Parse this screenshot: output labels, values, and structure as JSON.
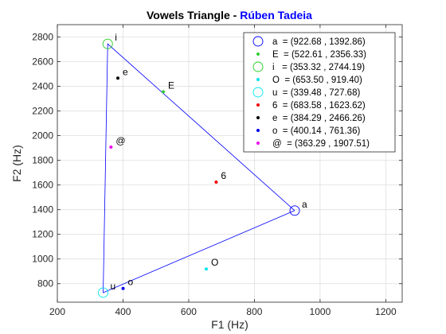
{
  "chart_data": {
    "type": "scatter",
    "title": "Vowels Triangle - ",
    "title_highlight": "Rúben Tadeia",
    "title_highlight_color": "#0000ff",
    "xlabel": "F1 (Hz)",
    "ylabel": "F2 (Hz)",
    "xlim": [
      200,
      1250
    ],
    "ylim": [
      650,
      2900
    ],
    "xticks": [
      200,
      400,
      600,
      800,
      1000,
      1200
    ],
    "yticks": [
      800,
      1000,
      1200,
      1400,
      1600,
      1800,
      2000,
      2200,
      2400,
      2600,
      2800
    ],
    "grid": true,
    "legend_position": "top-right",
    "triangle": {
      "vertices": [
        "a",
        "i",
        "u"
      ],
      "color": "#0000ff"
    },
    "series": [
      {
        "name": "a",
        "legend": "a  = (922.68 , 1392.86)",
        "x": 922.68,
        "y": 1392.86,
        "color": "#0000ff",
        "marker": "circle-open"
      },
      {
        "name": "E",
        "legend": "E  = (522.61 , 2356.33)",
        "x": 522.61,
        "y": 2356.33,
        "color": "#33cc33",
        "marker": "dot"
      },
      {
        "name": "i",
        "legend": "i   = (353.32 , 2744.19)",
        "x": 353.32,
        "y": 2744.19,
        "color": "#22cc22",
        "marker": "circle-open"
      },
      {
        "name": "O",
        "legend": "O  = (653.50 , 919.40)",
        "x": 653.5,
        "y": 919.4,
        "color": "#00e5ee",
        "marker": "dot"
      },
      {
        "name": "u",
        "legend": "u  = (339.48 , 727.68)",
        "x": 339.48,
        "y": 727.68,
        "color": "#00e5ee",
        "marker": "circle-open"
      },
      {
        "name": "6",
        "legend": "6  = (683.58 , 1623.62)",
        "x": 683.58,
        "y": 1623.62,
        "color": "#ee0000",
        "marker": "dot"
      },
      {
        "name": "e",
        "legend": "e  = (384.29 , 2466.26)",
        "x": 384.29,
        "y": 2466.26,
        "color": "#000000",
        "marker": "dot"
      },
      {
        "name": "o",
        "legend": "o  = (400.14 , 761.36)",
        "x": 400.14,
        "y": 761.36,
        "color": "#0000ee",
        "marker": "dot"
      },
      {
        "name": "@",
        "legend": "@  = (363.29 , 1907.51)",
        "x": 363.29,
        "y": 1907.51,
        "color": "#ee00ee",
        "marker": "dot"
      }
    ]
  }
}
